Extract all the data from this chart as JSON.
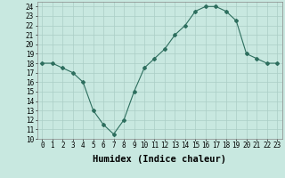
{
  "xlabel": "Humidex (Indice chaleur)",
  "ylabel": "",
  "x": [
    0,
    1,
    2,
    3,
    4,
    5,
    6,
    7,
    8,
    9,
    10,
    11,
    12,
    13,
    14,
    15,
    16,
    17,
    18,
    19,
    20,
    21,
    22,
    23
  ],
  "y": [
    18,
    18,
    17.5,
    17,
    16,
    13,
    11.5,
    10.5,
    12,
    15,
    17.5,
    18.5,
    19.5,
    21,
    22,
    23.5,
    24,
    24,
    23.5,
    22.5,
    19,
    18.5,
    18,
    18
  ],
  "xlim": [
    -0.5,
    23.5
  ],
  "ylim": [
    10,
    24.5
  ],
  "xticks": [
    0,
    1,
    2,
    3,
    4,
    5,
    6,
    7,
    8,
    9,
    10,
    11,
    12,
    13,
    14,
    15,
    16,
    17,
    18,
    19,
    20,
    21,
    22,
    23
  ],
  "yticks": [
    10,
    11,
    12,
    13,
    14,
    15,
    16,
    17,
    18,
    19,
    20,
    21,
    22,
    23,
    24
  ],
  "line_color": "#2d6e5e",
  "bg_color": "#c8e8e0",
  "grid_color": "#aacec6",
  "tick_fontsize": 5.5,
  "label_fontsize": 7.5
}
